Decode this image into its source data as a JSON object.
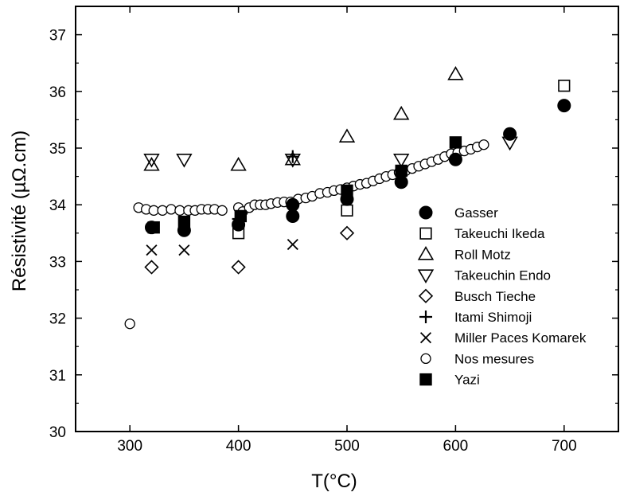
{
  "chart_data": {
    "type": "scatter",
    "xlabel": "T(°C)",
    "ylabel": "Résistivité (µΩ.cm)",
    "xlim": [
      250,
      750
    ],
    "ylim": [
      30,
      37.5
    ],
    "x_ticks": [
      300,
      400,
      500,
      600,
      700
    ],
    "y_ticks": [
      30,
      31,
      32,
      33,
      34,
      35,
      36,
      37
    ],
    "x_tick_labels": [
      "300",
      "400",
      "500",
      "600",
      "700"
    ],
    "y_tick_labels": [
      "30",
      "31",
      "32",
      "33",
      "34",
      "35",
      "36",
      "37"
    ],
    "grid": false,
    "legend_position": "right",
    "series": [
      {
        "name": "Gasser",
        "marker": "filled-circle",
        "points": [
          [
            320,
            33.6
          ],
          [
            350,
            33.55
          ],
          [
            400,
            33.65
          ],
          [
            450,
            33.8
          ],
          [
            450,
            34.0
          ],
          [
            500,
            34.1
          ],
          [
            550,
            34.4
          ],
          [
            600,
            34.8
          ],
          [
            650,
            35.25
          ],
          [
            700,
            35.75
          ]
        ]
      },
      {
        "name": " Takeuchi Ikeda",
        "marker": "open-square",
        "points": [
          [
            400,
            33.5
          ],
          [
            500,
            33.9
          ],
          [
            700,
            36.1
          ]
        ]
      },
      {
        "name": "Roll Motz",
        "marker": "open-triangle-up",
        "points": [
          [
            320,
            34.7
          ],
          [
            400,
            34.7
          ],
          [
            450,
            34.8
          ],
          [
            500,
            35.2
          ],
          [
            550,
            35.6
          ],
          [
            600,
            36.3
          ]
        ]
      },
      {
        "name": "Takeuchin Endo",
        "marker": "open-triangle-down",
        "points": [
          [
            320,
            34.8
          ],
          [
            350,
            34.8
          ],
          [
            450,
            34.8
          ],
          [
            550,
            34.8
          ],
          [
            650,
            35.1
          ]
        ]
      },
      {
        "name": "Busch Tieche",
        "marker": "open-diamond",
        "points": [
          [
            320,
            32.9
          ],
          [
            400,
            32.9
          ],
          [
            500,
            33.5
          ]
        ]
      },
      {
        "name": "Itami Shimoji",
        "marker": "plus",
        "points": [
          [
            400,
            33.75
          ],
          [
            450,
            34.85
          ]
        ]
      },
      {
        "name": "Miller Paces Komarek",
        "marker": "x",
        "points": [
          [
            320,
            33.2
          ],
          [
            350,
            33.2
          ],
          [
            450,
            33.3
          ]
        ]
      },
      {
        "name": "Nos mesures",
        "marker": "open-circle",
        "points": [
          [
            300,
            31.9
          ],
          [
            308,
            33.95
          ],
          [
            315,
            33.92
          ],
          [
            322,
            33.9
          ],
          [
            330,
            33.9
          ],
          [
            338,
            33.92
          ],
          [
            346,
            33.9
          ],
          [
            354,
            33.9
          ],
          [
            360,
            33.9
          ],
          [
            366,
            33.92
          ],
          [
            372,
            33.92
          ],
          [
            378,
            33.92
          ],
          [
            385,
            33.9
          ],
          [
            400,
            33.95
          ],
          [
            404,
            33.88
          ],
          [
            410,
            33.95
          ],
          [
            415,
            34.0
          ],
          [
            420,
            34.0
          ],
          [
            425,
            34.0
          ],
          [
            430,
            34.02
          ],
          [
            436,
            34.04
          ],
          [
            442,
            34.05
          ],
          [
            448,
            34.05
          ],
          [
            455,
            34.1
          ],
          [
            462,
            34.12
          ],
          [
            468,
            34.15
          ],
          [
            475,
            34.2
          ],
          [
            482,
            34.22
          ],
          [
            488,
            34.25
          ],
          [
            494,
            34.27
          ],
          [
            500,
            34.3
          ],
          [
            506,
            34.33
          ],
          [
            512,
            34.36
          ],
          [
            518,
            34.38
          ],
          [
            524,
            34.42
          ],
          [
            530,
            34.46
          ],
          [
            536,
            34.5
          ],
          [
            542,
            34.53
          ],
          [
            548,
            34.57
          ],
          [
            554,
            34.6
          ],
          [
            560,
            34.64
          ],
          [
            566,
            34.68
          ],
          [
            572,
            34.72
          ],
          [
            578,
            34.76
          ],
          [
            584,
            34.8
          ],
          [
            590,
            34.85
          ],
          [
            596,
            34.9
          ],
          [
            602,
            34.92
          ],
          [
            608,
            34.95
          ],
          [
            614,
            34.98
          ],
          [
            620,
            35.02
          ],
          [
            626,
            35.06
          ]
        ]
      },
      {
        "name": "Yazi",
        "marker": "filled-square",
        "points": [
          [
            322,
            33.6
          ],
          [
            350,
            33.7
          ],
          [
            402,
            33.8
          ],
          [
            500,
            34.25
          ],
          [
            550,
            34.6
          ],
          [
            600,
            35.1
          ]
        ]
      }
    ]
  }
}
